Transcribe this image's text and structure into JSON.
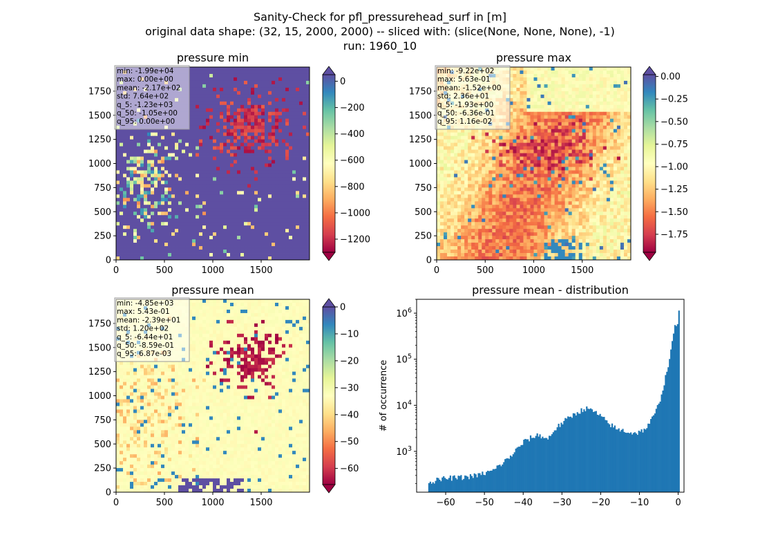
{
  "figure": {
    "suptitle_lines": [
      "Sanity-Check for pfl_pressurehead_surf in [m]",
      "original data shape: (32, 15, 2000, 2000) -- sliced with: (slice(None, None, None), -1)",
      "run: 1960_10"
    ]
  },
  "chart_data": [
    {
      "type": "heatmap",
      "title": "pressure min",
      "x_ticks": [
        0,
        500,
        1000,
        1500
      ],
      "y_ticks": [
        0,
        250,
        500,
        750,
        1000,
        1250,
        1500,
        1750
      ],
      "xlim": [
        0,
        2000
      ],
      "ylim": [
        0,
        2000
      ],
      "colorbar": {
        "ticks": [
          0,
          -200,
          -400,
          -600,
          -800,
          -1000,
          -1200
        ],
        "range": [
          -1300,
          50
        ],
        "extend": "both",
        "colormap": "Spectral"
      },
      "stats": [
        "min: -1.99e+04",
        "max: 0.00e+00",
        "mean: -2.17e+02",
        "std: 7.64e+02",
        "q_5: -1.23e+03",
        "q_50: -1.05e+00",
        "q_95: 0.00e+00"
      ]
    },
    {
      "type": "heatmap",
      "title": "pressure max",
      "x_ticks": [
        0,
        500,
        1000,
        1500
      ],
      "y_ticks": [
        0,
        250,
        500,
        750,
        1000,
        1250,
        1500,
        1750
      ],
      "xlim": [
        0,
        2000
      ],
      "ylim": [
        0,
        2000
      ],
      "colorbar": {
        "ticks": [
          "0.00",
          "−0.25",
          "−0.50",
          "−0.75",
          "−1.00",
          "−1.25",
          "−1.50",
          "−1.75"
        ],
        "range": [
          -1.95,
          0.02
        ],
        "extend": "both",
        "colormap": "Spectral"
      },
      "stats": [
        "min: -9.22e+02",
        "max: 5.63e-01",
        "mean: -1.52e+00",
        "std: 2.36e+01",
        "q_5: -1.93e+00",
        "q_50: -6.36e-01",
        "q_95: 1.16e-02"
      ]
    },
    {
      "type": "heatmap",
      "title": "pressure mean",
      "x_ticks": [
        0,
        500,
        1000,
        1500
      ],
      "y_ticks": [
        0,
        250,
        500,
        750,
        1000,
        1250,
        1500,
        1750
      ],
      "xlim": [
        0,
        2000
      ],
      "ylim": [
        0,
        2000
      ],
      "colorbar": {
        "ticks": [
          0,
          -10,
          -20,
          -30,
          -40,
          -50,
          -60
        ],
        "range": [
          -66,
          0
        ],
        "extend": "both",
        "colormap": "Spectral"
      },
      "stats": [
        "min: -4.85e+03",
        "max: 5.43e-01",
        "mean: -2.39e+01",
        "std: 1.20e+02",
        "q_5: -6.44e+01",
        "q_50: -8.59e-01",
        "q_95: 6.87e-03"
      ]
    },
    {
      "type": "bar",
      "title": "pressure mean - distribution",
      "ylabel": "# of occurrence",
      "xlabel": "",
      "y_scale": "log",
      "x_ticks": [
        -60,
        -50,
        -40,
        -30,
        -20,
        -10,
        0
      ],
      "y_ticks": [
        "10^3",
        "10^4",
        "10^5",
        "10^6"
      ],
      "xlim": [
        -67.5,
        1.5
      ],
      "ylim": [
        130,
        2000000
      ],
      "color": "#1f77b4",
      "bins": {
        "x": [
          -64,
          -60,
          -56,
          -52,
          -48,
          -44,
          -40,
          -38,
          -36,
          -34,
          -32,
          -30,
          -28,
          -26,
          -24,
          -22,
          -20,
          -18,
          -16,
          -14,
          -12,
          -10,
          -8,
          -6,
          -5,
          -4,
          -3,
          -2,
          -1.5,
          -1,
          -0.5,
          0
        ],
        "counts": [
          220,
          260,
          270,
          300,
          380,
          700,
          1600,
          2000,
          2300,
          1800,
          3000,
          4200,
          5600,
          7200,
          8500,
          7500,
          5500,
          4000,
          3000,
          2800,
          2500,
          2600,
          3500,
          7000,
          12000,
          25000,
          60000,
          150000,
          350000,
          500000,
          450000,
          1300000
        ]
      }
    }
  ]
}
